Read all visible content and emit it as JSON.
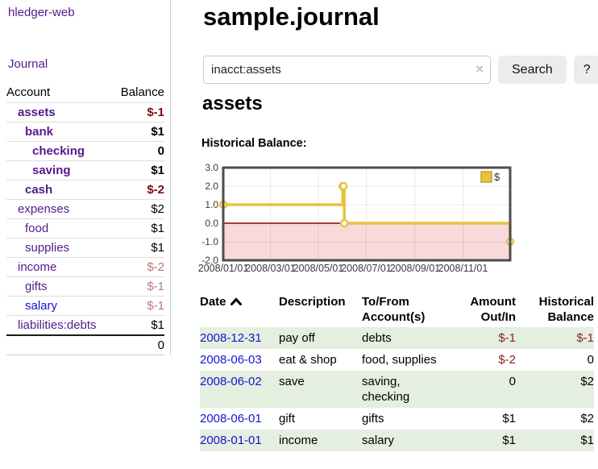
{
  "app": {
    "title": "hledger-web"
  },
  "sidebar": {
    "journal_label": "Journal",
    "accounts_table": {
      "header_account": "Account",
      "header_balance": "Balance",
      "rows": [
        {
          "name": "assets",
          "indent": 1,
          "bold": true,
          "balance": "$-1",
          "negative": "strong"
        },
        {
          "name": "bank",
          "indent": 2,
          "bold": true,
          "balance": "$1",
          "negative": "none"
        },
        {
          "name": "checking",
          "indent": 3,
          "bold": true,
          "balance": "0",
          "negative": "none"
        },
        {
          "name": "saving",
          "indent": 3,
          "bold": true,
          "balance": "$1",
          "negative": "none"
        },
        {
          "name": "cash",
          "indent": 2,
          "bold": true,
          "balance": "$-2",
          "negative": "strong"
        },
        {
          "name": "expenses",
          "indent": 1,
          "bold": false,
          "balance": "$2",
          "negative": "none"
        },
        {
          "name": "food",
          "indent": 2,
          "bold": false,
          "balance": "$1",
          "negative": "none"
        },
        {
          "name": "supplies",
          "indent": 2,
          "bold": false,
          "balance": "$1",
          "negative": "none"
        },
        {
          "name": "income",
          "indent": 1,
          "bold": false,
          "balance": "$-2",
          "negative": "soft"
        },
        {
          "name": "gifts",
          "indent": 2,
          "bold": false,
          "balance": "$-1",
          "negative": "soft"
        },
        {
          "name": "salary",
          "indent": 2,
          "bold": false,
          "balance": "$-1",
          "negative": "soft",
          "link_color": "blue"
        },
        {
          "name": "liabilities:debts",
          "indent": 1,
          "bold": false,
          "balance": "$1",
          "negative": "none"
        }
      ],
      "total": "0"
    }
  },
  "main": {
    "title": "sample.journal",
    "search": {
      "value": "inacct:assets",
      "clear_icon": "×",
      "button_label": "Search",
      "help_label": "?"
    },
    "account_heading": "assets",
    "chart_label": "Historical Balance:"
  },
  "chart_data": {
    "type": "line",
    "step": true,
    "title": "Historical Balance:",
    "series": [
      {
        "name": "$",
        "color": "#e8c23f",
        "points": [
          [
            "2008-01-01",
            1
          ],
          [
            "2008-06-01",
            2
          ],
          [
            "2008-06-02",
            2
          ],
          [
            "2008-06-03",
            0
          ],
          [
            "2008-12-31",
            -1
          ]
        ]
      }
    ],
    "xrange": [
      "2008-01-01",
      "2008-12-31"
    ],
    "ylim": [
      -2.0,
      3.0
    ],
    "yticks": [
      "3.0",
      "2.0",
      "1.0",
      "0.0",
      "-1.0",
      "-2.0"
    ],
    "xticks": [
      "2008/01/01",
      "2008/03/01",
      "2008/05/01",
      "2008/07/01",
      "2008/09/01",
      "2008/11/01"
    ],
    "legend": {
      "label": "$",
      "position": "top-right"
    },
    "grid": true,
    "negative_region_color": "#f9d9d9",
    "zero_line_color": "#8b0000",
    "border_color": "#4d4d4d"
  },
  "register_table": {
    "headers": [
      {
        "lines": [
          "Date"
        ],
        "align": "left",
        "sorted": "asc"
      },
      {
        "lines": [
          "Description"
        ],
        "align": "left"
      },
      {
        "lines": [
          "To/From",
          "Account(s)"
        ],
        "align": "left"
      },
      {
        "lines": [
          "Amount",
          "Out/In"
        ],
        "align": "right"
      },
      {
        "lines": [
          "Historical",
          "Balance"
        ],
        "align": "right"
      }
    ],
    "rows": [
      {
        "date": "2008-12-31",
        "description": "pay off",
        "accounts": [
          "debts"
        ],
        "amount": "$-1",
        "amount_negative": true,
        "balance": "$-1",
        "balance_negative": true
      },
      {
        "date": "2008-06-03",
        "description": "eat & shop",
        "accounts": [
          "food, supplies"
        ],
        "amount": "$-2",
        "amount_negative": true,
        "balance": "0",
        "balance_negative": false
      },
      {
        "date": "2008-06-02",
        "description": "save",
        "accounts": [
          "saving,",
          "checking"
        ],
        "amount": "0",
        "amount_negative": false,
        "balance": "$2",
        "balance_negative": false
      },
      {
        "date": "2008-06-01",
        "description": "gift",
        "accounts": [
          "gifts"
        ],
        "amount": "$1",
        "amount_negative": false,
        "balance": "$2",
        "balance_negative": false
      },
      {
        "date": "2008-01-01",
        "description": "income",
        "accounts": [
          "salary"
        ],
        "amount": "$1",
        "amount_negative": false,
        "balance": "$1",
        "balance_negative": false
      }
    ]
  },
  "colors": {
    "link_purple": "#551a8b",
    "link_blue": "#1414d2",
    "negative_strong": "#7e0c0c",
    "negative_soft": "#bb7777",
    "negative_table": "#8b2222",
    "row_stripe_green": "#e4efdf",
    "chart_line_gold": "#e8c23f"
  }
}
